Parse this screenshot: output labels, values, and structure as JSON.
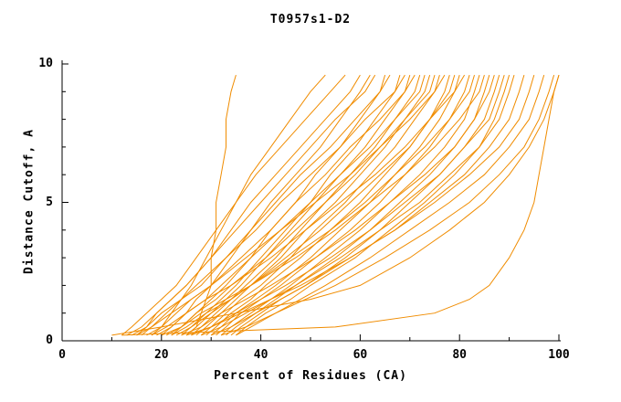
{
  "title": "T0957s1-D2",
  "chart_data": {
    "type": "line",
    "title": "T0957s1-D2",
    "xlabel": "Percent of Residues (CA)",
    "ylabel": "Distance Cutoff, A",
    "xlim": [
      0,
      100
    ],
    "ylim": [
      0,
      10
    ],
    "x_major_ticks": [
      0,
      20,
      40,
      60,
      80,
      100
    ],
    "x_minor_ticks": [
      10,
      30,
      50,
      70,
      90
    ],
    "y_major_ticks": [
      0,
      5,
      10
    ],
    "y_minor_ticks": [
      1,
      2,
      3,
      4,
      6,
      7,
      8,
      9
    ],
    "line_color": "#f08c00",
    "axis_color": "#000000",
    "legend": "none",
    "grid": false,
    "y_levels": [
      0.2,
      0.5,
      1,
      1.5,
      2,
      3,
      4,
      5,
      6,
      7,
      8,
      9,
      9.6
    ],
    "series": [
      [
        25,
        27,
        28,
        29,
        30,
        30,
        31,
        31,
        32,
        33,
        33,
        34,
        35
      ],
      [
        18,
        20,
        22,
        24,
        26,
        29,
        32,
        35,
        38,
        42,
        46,
        50,
        53
      ],
      [
        12,
        14,
        17,
        20,
        23,
        27,
        31,
        35,
        39,
        44,
        49,
        54,
        57
      ],
      [
        15,
        17,
        19,
        22,
        25,
        30,
        34,
        38,
        43,
        48,
        53,
        58,
        60
      ],
      [
        20,
        22,
        25,
        27,
        30,
        34,
        38,
        42,
        47,
        52,
        56,
        60,
        62
      ],
      [
        13,
        16,
        19,
        22,
        25,
        30,
        35,
        40,
        45,
        50,
        55,
        61,
        63
      ],
      [
        22,
        24,
        27,
        30,
        33,
        38,
        42,
        47,
        51,
        56,
        60,
        64,
        65
      ],
      [
        16,
        18,
        21,
        24,
        28,
        33,
        38,
        43,
        48,
        54,
        59,
        64,
        66
      ],
      [
        24,
        26,
        29,
        32,
        35,
        40,
        45,
        50,
        54,
        59,
        63,
        67,
        68
      ],
      [
        14,
        17,
        20,
        24,
        27,
        33,
        39,
        44,
        50,
        56,
        61,
        67,
        69
      ],
      [
        25,
        27,
        30,
        33,
        36,
        41,
        46,
        51,
        56,
        61,
        65,
        69,
        70
      ],
      [
        17,
        20,
        23,
        26,
        30,
        36,
        42,
        47,
        53,
        58,
        64,
        69,
        71
      ],
      [
        26,
        28,
        31,
        34,
        37,
        43,
        48,
        53,
        58,
        63,
        67,
        71,
        72
      ],
      [
        19,
        22,
        25,
        29,
        32,
        38,
        44,
        50,
        56,
        62,
        67,
        72,
        73
      ],
      [
        27,
        29,
        32,
        35,
        38,
        44,
        49,
        55,
        60,
        65,
        69,
        73,
        74
      ],
      [
        21,
        24,
        27,
        31,
        34,
        41,
        47,
        53,
        59,
        64,
        69,
        74,
        75
      ],
      [
        28,
        30,
        33,
        36,
        40,
        46,
        51,
        57,
        62,
        67,
        71,
        75,
        76
      ],
      [
        15,
        18,
        22,
        26,
        30,
        37,
        44,
        51,
        58,
        64,
        70,
        75,
        77
      ],
      [
        29,
        31,
        34,
        38,
        41,
        48,
        54,
        60,
        65,
        70,
        74,
        77,
        78
      ],
      [
        23,
        26,
        30,
        34,
        38,
        45,
        52,
        58,
        64,
        70,
        74,
        78,
        79
      ],
      [
        30,
        32,
        35,
        39,
        43,
        50,
        56,
        62,
        67,
        72,
        76,
        79,
        80
      ],
      [
        18,
        21,
        25,
        29,
        34,
        42,
        49,
        56,
        63,
        69,
        74,
        79,
        81
      ],
      [
        31,
        33,
        36,
        40,
        44,
        51,
        58,
        64,
        69,
        74,
        78,
        81,
        82
      ],
      [
        22,
        25,
        29,
        34,
        38,
        46,
        54,
        61,
        67,
        73,
        78,
        82,
        83
      ],
      [
        32,
        34,
        38,
        42,
        46,
        53,
        60,
        66,
        72,
        77,
        81,
        83,
        84
      ],
      [
        20,
        24,
        28,
        33,
        38,
        47,
        55,
        62,
        69,
        75,
        80,
        84,
        85
      ],
      [
        33,
        35,
        39,
        43,
        47,
        55,
        62,
        68,
        74,
        79,
        83,
        85,
        86
      ],
      [
        24,
        28,
        32,
        37,
        42,
        51,
        59,
        66,
        73,
        79,
        83,
        86,
        87
      ],
      [
        34,
        36,
        40,
        44,
        49,
        57,
        64,
        70,
        76,
        81,
        85,
        87,
        88
      ],
      [
        26,
        30,
        35,
        40,
        45,
        54,
        62,
        69,
        76,
        81,
        86,
        88,
        89
      ],
      [
        35,
        37,
        41,
        46,
        50,
        59,
        66,
        73,
        79,
        84,
        87,
        89,
        90
      ],
      [
        28,
        32,
        37,
        42,
        47,
        56,
        64,
        72,
        78,
        84,
        88,
        90,
        91
      ],
      [
        30,
        34,
        39,
        44,
        49,
        58,
        67,
        74,
        81,
        86,
        90,
        92,
        93
      ],
      [
        25,
        30,
        36,
        42,
        48,
        58,
        67,
        75,
        82,
        88,
        92,
        94,
        95
      ],
      [
        35,
        38,
        43,
        48,
        53,
        62,
        70,
        78,
        85,
        90,
        94,
        96,
        97
      ],
      [
        32,
        37,
        43,
        49,
        55,
        65,
        74,
        82,
        88,
        93,
        96,
        98,
        99
      ],
      [
        10,
        20,
        35,
        50,
        60,
        70,
        78,
        85,
        90,
        94,
        97,
        99,
        100
      ],
      [
        12,
        55,
        75,
        82,
        86,
        90,
        93,
        95,
        96,
        97,
        98,
        99,
        100
      ]
    ]
  }
}
